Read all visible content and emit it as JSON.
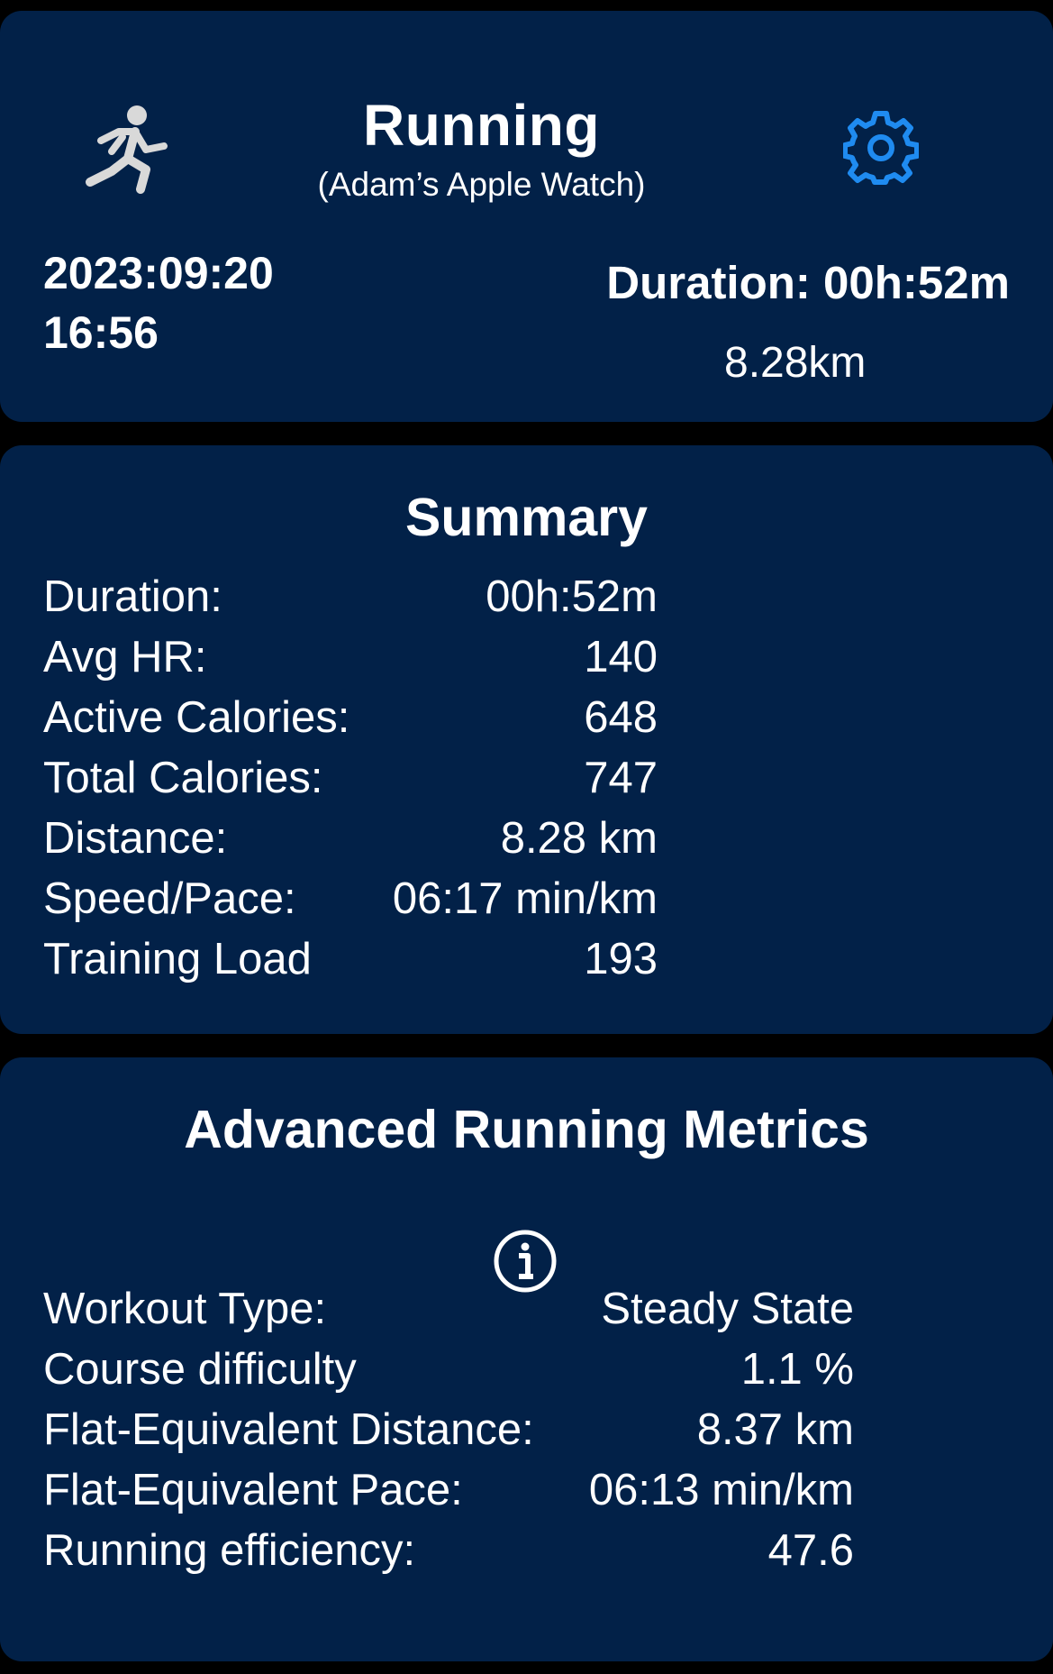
{
  "header": {
    "title": "Running",
    "subtitle": "(Adam’s Apple Watch)",
    "date": "2023:09:20",
    "time": "16:56",
    "duration": "Duration: 00h:52m",
    "distance": "8.28km",
    "icons": {
      "activity": "running-figure-icon",
      "settings": "gear-icon"
    },
    "colors": {
      "card_bg": "#022148",
      "page_bg": "#000000",
      "settings_icon": "#1f8bf0",
      "activity_icon": "#d9d9d9"
    }
  },
  "summary": {
    "title": "Summary",
    "rows": [
      {
        "label": "Duration:",
        "value": "00h:52m"
      },
      {
        "label": "Avg HR:",
        "value": "140"
      },
      {
        "label": "Active Calories:",
        "value": "648"
      },
      {
        "label": "Total Calories:",
        "value": "747"
      },
      {
        "label": "Distance:",
        "value": "8.28 km"
      },
      {
        "label": "Speed/Pace:",
        "value": "06:17 min/km"
      },
      {
        "label": "Training Load",
        "value": "193"
      }
    ]
  },
  "advanced": {
    "title": "Advanced Running Metrics",
    "info_icon": "info-circle-icon",
    "rows": [
      {
        "label": "Workout Type:",
        "value": "Steady State"
      },
      {
        "label": "Course difficulty",
        "value": "1.1 %"
      },
      {
        "label": "Flat-Equivalent Distance:",
        "value": "8.37 km"
      },
      {
        "label": "Flat-Equivalent Pace:",
        "value": "06:13 min/km"
      },
      {
        "label": "Running efficiency:",
        "value": "47.6"
      }
    ]
  }
}
